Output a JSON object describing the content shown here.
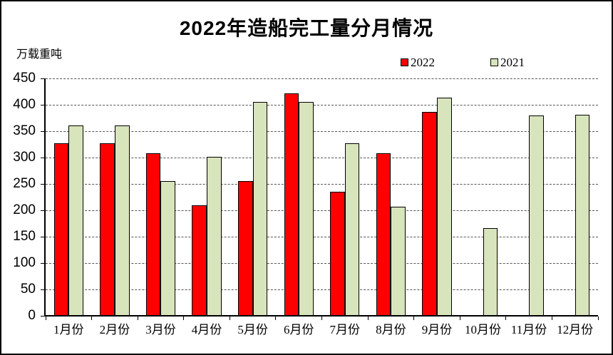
{
  "title": "2022年造船完工量分月情况",
  "y_unit_label": "万载重吨",
  "colors": {
    "series_2022": "#FF0000",
    "series_2021": "#D8E4BC",
    "axis": "#000000",
    "gridline": "#555555",
    "background": "#FFFFFF"
  },
  "chart_data": {
    "type": "bar",
    "title": "2022年造船完工量分月情况",
    "xlabel": "",
    "ylabel": "万载重吨",
    "categories": [
      "1月份",
      "2月份",
      "3月份",
      "4月份",
      "5月份",
      "6月份",
      "7月份",
      "8月份",
      "9月份",
      "10月份",
      "11月份",
      "12月份"
    ],
    "series": [
      {
        "name": "2022",
        "color": "#FF0000",
        "values": [
          327,
          327,
          308,
          210,
          256,
          422,
          235,
          308,
          386,
          null,
          null,
          null
        ]
      },
      {
        "name": "2021",
        "color": "#D8E4BC",
        "values": [
          361,
          361,
          255,
          302,
          405,
          405,
          327,
          207,
          414,
          166,
          380,
          381
        ]
      }
    ],
    "ylim": [
      0,
      450
    ],
    "ytick_step": 50,
    "yticks": [
      0,
      50,
      100,
      150,
      200,
      250,
      300,
      350,
      400,
      450
    ],
    "grid": "horizontal-dashed",
    "legend_position": "top-right"
  }
}
